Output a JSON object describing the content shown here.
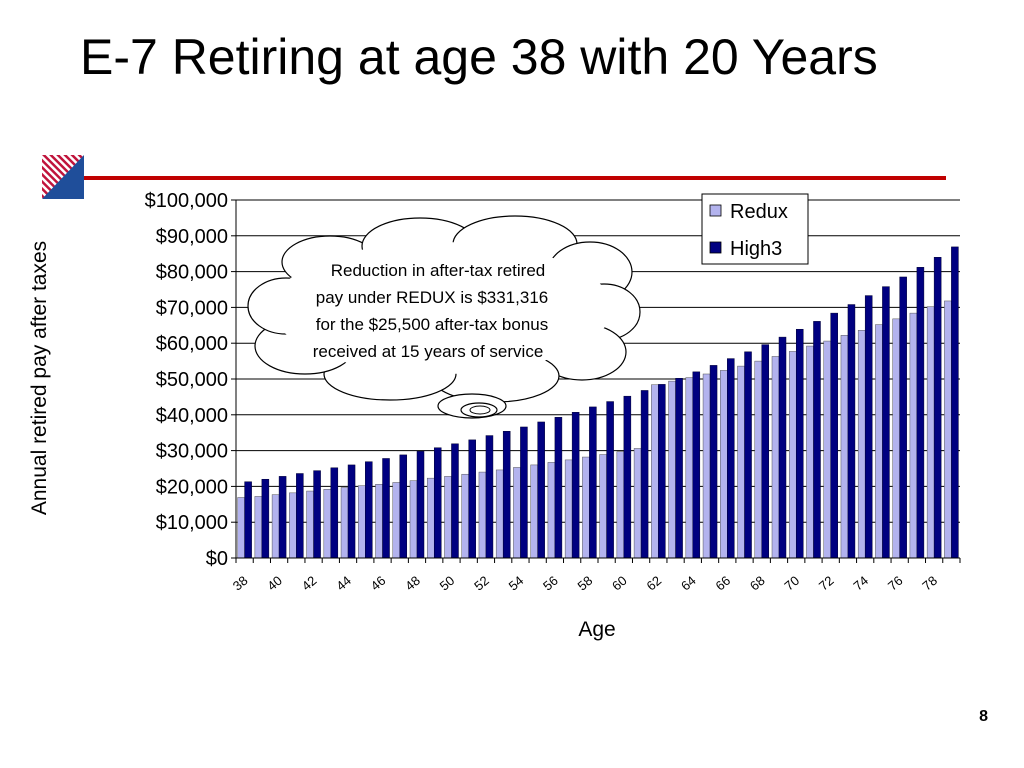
{
  "slide": {
    "title": "E-7 Retiring at age 38 with 20 Years",
    "page_number": "8"
  },
  "colors": {
    "accent_rule": "#c00000",
    "logo_blue": "#1f4e9a",
    "logo_red": "#c0143c"
  },
  "callout": {
    "lines": [
      "Reduction in after-tax retired",
      "pay under REDUX is $331,316",
      "for the $25,500 after-tax bonus",
      "received at 15 years of service"
    ]
  },
  "chart_data": {
    "type": "bar",
    "title": "",
    "xlabel": "Age",
    "ylabel": "Annual retired pay after taxes",
    "ylim": [
      0,
      100000
    ],
    "yticks": [
      0,
      10000,
      20000,
      30000,
      40000,
      50000,
      60000,
      70000,
      80000,
      90000,
      100000
    ],
    "ytick_labels": [
      "$0",
      "$10,000",
      "$20,000",
      "$30,000",
      "$40,000",
      "$50,000",
      "$60,000",
      "$70,000",
      "$80,000",
      "$90,000",
      "$100,000"
    ],
    "categories": [
      38,
      39,
      40,
      41,
      42,
      43,
      44,
      45,
      46,
      47,
      48,
      49,
      50,
      51,
      52,
      53,
      54,
      55,
      56,
      57,
      58,
      59,
      60,
      61,
      62,
      63,
      64,
      65,
      66,
      67,
      68,
      69,
      70,
      71,
      72,
      73,
      74,
      75,
      76,
      77,
      78,
      79
    ],
    "xtick_labels": [
      "38",
      "40",
      "42",
      "44",
      "46",
      "48",
      "50",
      "52",
      "54",
      "56",
      "58",
      "60",
      "62",
      "64",
      "66",
      "68",
      "70",
      "72",
      "74",
      "76",
      "78"
    ],
    "grid": true,
    "legend_position": "top-right",
    "series": [
      {
        "name": "Redux",
        "color": "#b3b3ee",
        "values": [
          16900,
          17200,
          17700,
          18200,
          18700,
          19200,
          19700,
          20200,
          20600,
          21100,
          21600,
          22300,
          22800,
          23400,
          24000,
          24600,
          25300,
          26000,
          26700,
          27400,
          28200,
          28900,
          29700,
          30600,
          48400,
          49400,
          50400,
          51400,
          52400,
          53600,
          55000,
          56300,
          57700,
          59200,
          60600,
          62200,
          63600,
          65200,
          66800,
          68400,
          70200,
          71800
        ]
      },
      {
        "name": "High3",
        "color": "#000080",
        "values": [
          21300,
          22000,
          22800,
          23600,
          24400,
          25200,
          26000,
          26900,
          27800,
          28800,
          29800,
          30800,
          31900,
          33000,
          34200,
          35400,
          36600,
          38000,
          39300,
          40700,
          42200,
          43700,
          45200,
          46800,
          48500,
          50200,
          52000,
          53800,
          55700,
          57600,
          59600,
          61700,
          63900,
          66100,
          68400,
          70800,
          73300,
          75800,
          78500,
          81200,
          84000,
          86900
        ]
      }
    ]
  }
}
